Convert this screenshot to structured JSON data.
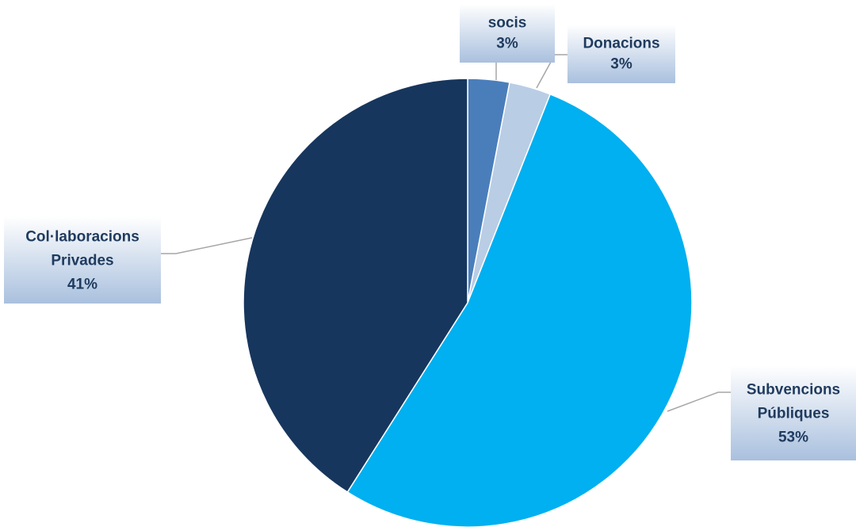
{
  "chart_data": {
    "type": "pie",
    "title": "",
    "slices": [
      {
        "name": "socis",
        "value": 3,
        "label_lines": [
          "socis"
        ],
        "percent_label": "3%",
        "color": "#4a7ebb"
      },
      {
        "name": "Donacions",
        "value": 3,
        "label_lines": [
          "Donacions"
        ],
        "percent_label": "3%",
        "color": "#b9cde5"
      },
      {
        "name": "Subvencions Públiques",
        "value": 53,
        "label_lines": [
          "Subvencions",
          "Públiques"
        ],
        "percent_label": "53%",
        "color": "#00b0f0"
      },
      {
        "name": "Col·laboracions Privades",
        "value": 41,
        "label_lines": [
          "Col·laboracions",
          "Privades"
        ],
        "percent_label": "41%",
        "color": "#17365d"
      }
    ],
    "legend": "none",
    "data_labels": "outside with leader lines"
  }
}
